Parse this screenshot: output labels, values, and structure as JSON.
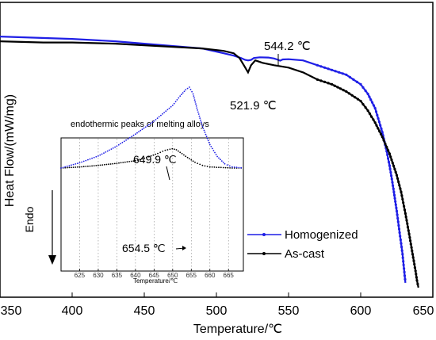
{
  "chart_data": [
    {
      "type": "line",
      "title": "",
      "xlabel": "Temperature/℃",
      "ylabel": "Heat Flow/(mW/mg)",
      "xlim": [
        350,
        650
      ],
      "x_ticks": [
        "350",
        "400",
        "450",
        "500",
        "550",
        "600",
        "650"
      ],
      "y_ticks_labeled": false,
      "grid": false,
      "legend_position": "bottom-right",
      "series": [
        {
          "name": "Homogenized",
          "color": "#1f1fe6",
          "marker": "circle",
          "x": [
            350,
            375,
            400,
            430,
            460,
            490,
            505,
            512,
            517,
            520,
            522,
            524,
            526,
            530,
            536,
            540,
            542,
            544.2,
            546,
            550,
            560,
            570,
            580,
            585,
            590,
            595,
            600,
            605,
            610,
            615,
            618,
            620,
            622,
            625,
            627,
            629,
            630,
            631
          ],
          "y": [
            0.97,
            0.965,
            0.96,
            0.95,
            0.935,
            0.92,
            0.9,
            0.89,
            0.88,
            0.872,
            0.87,
            0.872,
            0.88,
            0.883,
            0.882,
            0.878,
            0.874,
            0.869,
            0.874,
            0.875,
            0.87,
            0.85,
            0.83,
            0.82,
            0.81,
            0.79,
            0.77,
            0.73,
            0.67,
            0.57,
            0.49,
            0.43,
            0.36,
            0.24,
            0.15,
            0.06,
            0.0,
            -0.06
          ]
        },
        {
          "name": "As-cast",
          "color": "#000000",
          "marker": "circle",
          "x": [
            350,
            380,
            400,
            430,
            460,
            490,
            505,
            512,
            516,
            519,
            521.9,
            524,
            527,
            532,
            540,
            550,
            560,
            570,
            580,
            590,
            600,
            605,
            610,
            615,
            620,
            625,
            628,
            631,
            634,
            636,
            638,
            639,
            640
          ],
          "y": [
            0.95,
            0.945,
            0.945,
            0.94,
            0.93,
            0.92,
            0.91,
            0.9,
            0.88,
            0.85,
            0.82,
            0.85,
            0.87,
            0.86,
            0.85,
            0.84,
            0.82,
            0.79,
            0.77,
            0.74,
            0.7,
            0.66,
            0.61,
            0.55,
            0.48,
            0.39,
            0.32,
            0.23,
            0.13,
            0.06,
            -0.01,
            -0.05,
            -0.08
          ]
        }
      ],
      "annotations": [
        {
          "text": "544.2 ℃",
          "x": 544.2,
          "series": "Homogenized"
        },
        {
          "text": "521.9 ℃",
          "x": 521.9,
          "series": "As-cast"
        }
      ],
      "endo_label": "Endo"
    },
    {
      "type": "line",
      "title": "endothermic peaks of melting alloys",
      "xlabel": "Temperature/℃",
      "xlim": [
        620,
        669
      ],
      "x_ticks": [
        "625",
        "630",
        "635",
        "640",
        "645",
        "650",
        "655",
        "660",
        "665"
      ],
      "grid": "vertical dotted",
      "series": [
        {
          "name": "As-cast",
          "color": "#000000",
          "x": [
            620,
            625,
            630,
            635,
            640,
            643,
            646,
            648,
            649.9,
            651,
            652,
            654,
            656,
            658,
            660,
            663,
            666,
            669
          ],
          "y": [
            0.0,
            -0.02,
            -0.05,
            -0.09,
            -0.14,
            -0.2,
            -0.28,
            -0.34,
            -0.37,
            -0.35,
            -0.3,
            -0.2,
            -0.11,
            -0.05,
            -0.02,
            -0.01,
            0.0,
            0.0
          ]
        },
        {
          "name": "Homogenized",
          "color": "#1f1fe6",
          "x": [
            620,
            625,
            630,
            635,
            640,
            645,
            650,
            652,
            653.5,
            654.5,
            655.5,
            656.5,
            658,
            660,
            662,
            664,
            666,
            669
          ],
          "y": [
            0.0,
            -0.1,
            -0.23,
            -0.42,
            -0.65,
            -0.9,
            -1.2,
            -1.38,
            -1.5,
            -1.55,
            -1.42,
            -1.15,
            -0.8,
            -0.45,
            -0.22,
            -0.08,
            -0.02,
            0.0
          ]
        }
      ],
      "annotations": [
        {
          "text": "649.9 ℃",
          "x": 649.9,
          "series": "As-cast"
        },
        {
          "text": "654.5 ℃",
          "x": 654.5,
          "series": "Homogenized"
        }
      ]
    }
  ]
}
